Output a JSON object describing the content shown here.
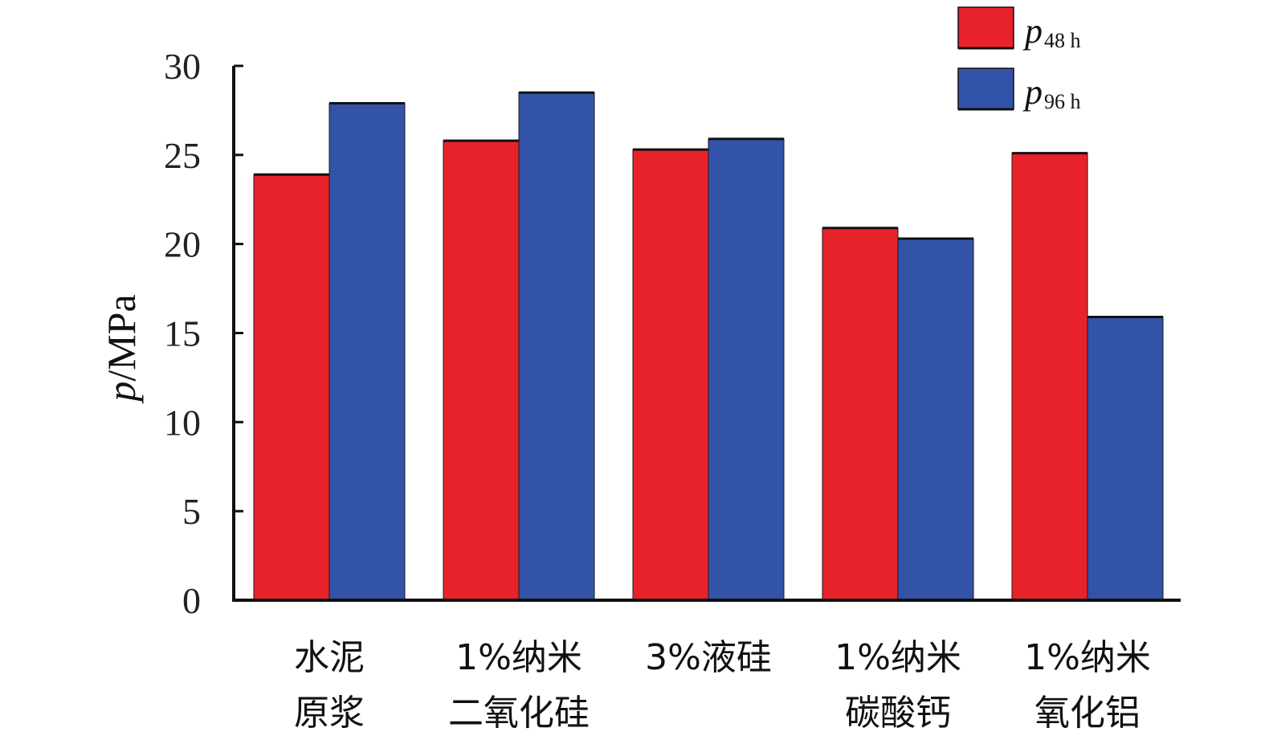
{
  "chart_data": {
    "type": "bar",
    "title": "",
    "xlabel": "",
    "ylabel": {
      "symbol": "p",
      "unit": "/MPa"
    },
    "ylim": [
      0,
      30
    ],
    "yticks": [
      0,
      5,
      10,
      15,
      20,
      25,
      30
    ],
    "grid": false,
    "legend_position": "top-right",
    "categories": [
      [
        "水泥",
        "原浆"
      ],
      [
        "1%纳米",
        "二氧化硅"
      ],
      [
        "3%液硅"
      ],
      [
        "1%纳米",
        "碳酸钙"
      ],
      [
        "1%纳米",
        "氧化铝"
      ]
    ],
    "series": [
      {
        "symbol": "p",
        "subscript": "48 h",
        "color": "#e8222a",
        "values": [
          23.9,
          25.8,
          25.3,
          20.9,
          25.1
        ]
      },
      {
        "symbol": "p",
        "subscript": "96 h",
        "color": "#3353a8",
        "values": [
          27.9,
          28.5,
          25.9,
          20.3,
          15.9
        ]
      }
    ]
  }
}
